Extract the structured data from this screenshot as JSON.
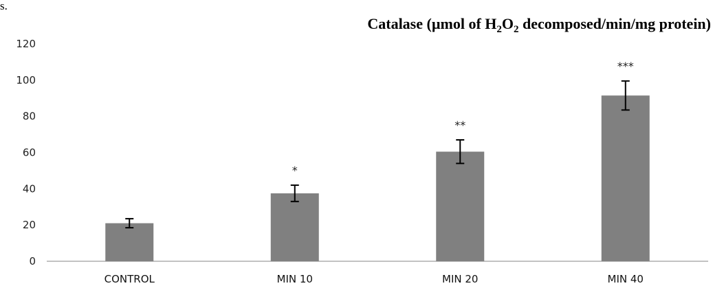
{
  "page": {
    "corner_fragment": "s."
  },
  "chart_data": {
    "type": "bar",
    "title_parts": {
      "before": "Catalase (µmol of H",
      "sub1": "2",
      "middle": "O",
      "sub2": "2",
      "after": " decomposed/min/mg protein)"
    },
    "categories": [
      "CONTROL",
      "MIN 10",
      "MIN 20",
      "MIN 40"
    ],
    "values": [
      21,
      37.5,
      60.5,
      91.5
    ],
    "errors": [
      2.5,
      4.5,
      6.5,
      8
    ],
    "significance": [
      "",
      "*",
      "**",
      "***"
    ],
    "xlabel": "",
    "ylabel": "",
    "ylim": [
      0,
      120
    ],
    "yticks": [
      0,
      20,
      40,
      60,
      80,
      100,
      120
    ],
    "grid": false,
    "legend": "none",
    "bar_color": "#808080",
    "axis_color": "#868686",
    "error_color": "#000000"
  }
}
